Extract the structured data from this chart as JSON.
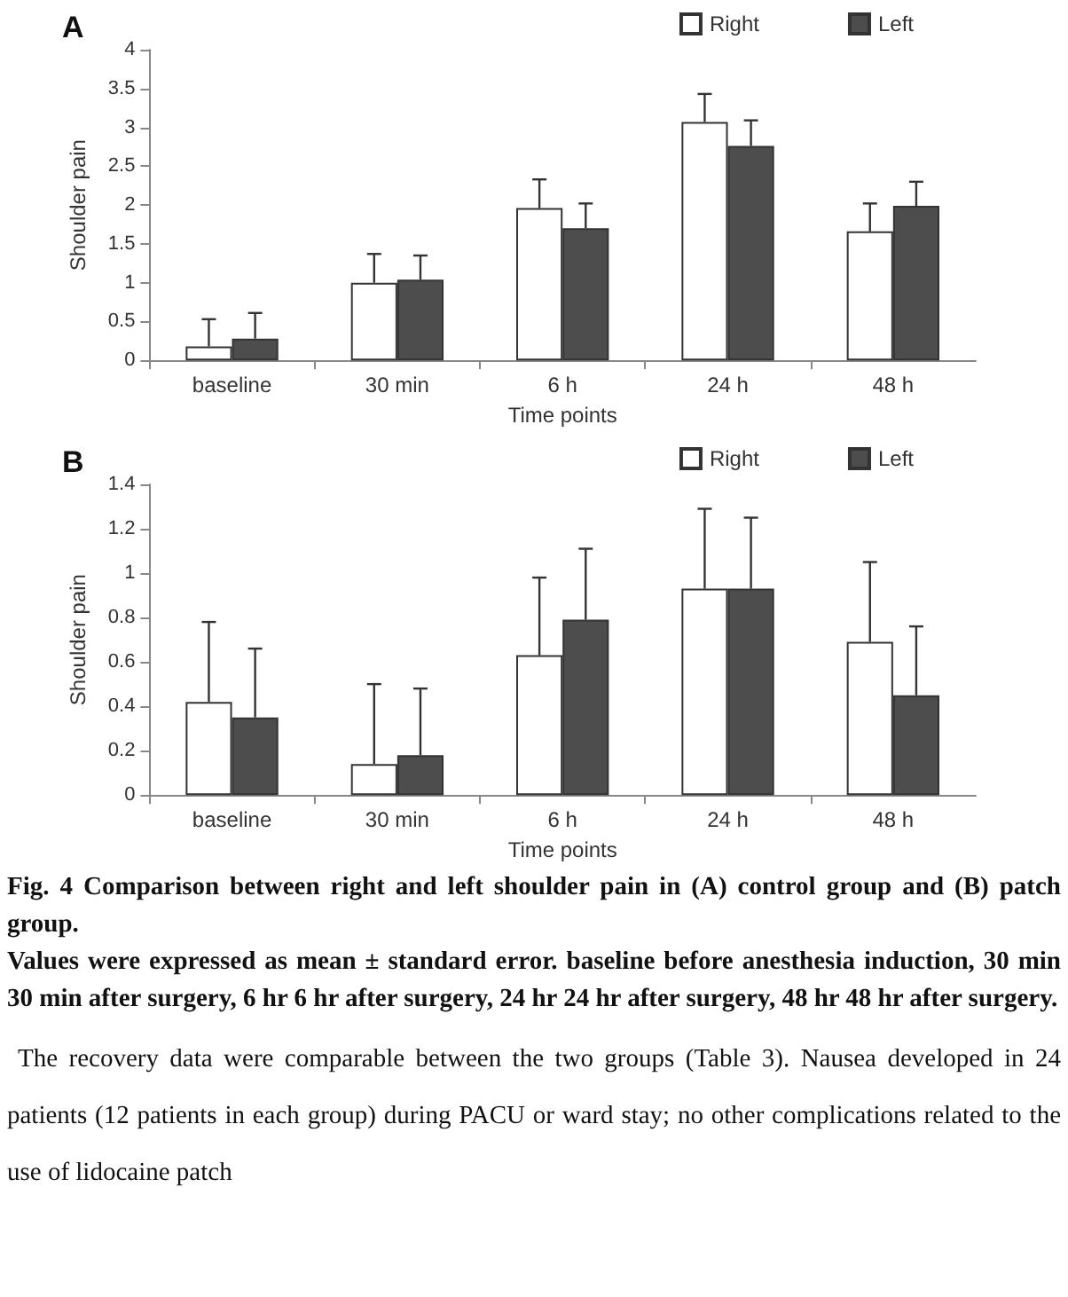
{
  "chart_data": [
    {
      "type": "bar",
      "title": "A",
      "xlabel": "Time points",
      "ylabel": "Shoulder pain",
      "categories": [
        "baseline",
        "30 min",
        "6 h",
        "24 h",
        "48 h"
      ],
      "legend": "top right",
      "ylim": [
        0,
        4
      ],
      "yticks": [
        0,
        0.5,
        1,
        1.5,
        2,
        2.5,
        3,
        3.5,
        4
      ],
      "series": [
        {
          "name": "Right",
          "color": "#ffffff",
          "values": [
            0.18,
            1.0,
            1.96,
            3.07,
            1.66
          ],
          "errors": [
            [
              0.18,
              0.53
            ],
            [
              1.0,
              1.37
            ],
            [
              1.96,
              2.33
            ],
            [
              3.07,
              3.43
            ],
            [
              1.66,
              2.02
            ]
          ]
        },
        {
          "name": "Left",
          "color": "#4d4d4d",
          "values": [
            0.28,
            1.04,
            1.7,
            2.76,
            1.99
          ],
          "errors": [
            [
              0.28,
              0.61
            ],
            [
              1.04,
              1.35
            ],
            [
              1.7,
              2.02
            ],
            [
              2.76,
              3.09
            ],
            [
              1.99,
              2.3
            ]
          ]
        }
      ]
    },
    {
      "type": "bar",
      "title": "B",
      "xlabel": "Time points",
      "ylabel": "Shoulder pain",
      "categories": [
        "baseline",
        "30 min",
        "6 h",
        "24 h",
        "48 h"
      ],
      "legend": "top right",
      "ylim": [
        0,
        1.4
      ],
      "yticks": [
        0,
        0.2,
        0.4,
        0.6,
        0.8,
        1,
        1.2,
        1.4
      ],
      "series": [
        {
          "name": "Right",
          "color": "#ffffff",
          "values": [
            0.42,
            0.14,
            0.63,
            0.93,
            0.69
          ],
          "errors": [
            [
              0.42,
              0.78
            ],
            [
              0.14,
              0.5
            ],
            [
              0.63,
              0.98
            ],
            [
              0.93,
              1.29
            ],
            [
              0.69,
              1.05
            ]
          ]
        },
        {
          "name": "Left",
          "color": "#4d4d4d",
          "values": [
            0.35,
            0.18,
            0.79,
            0.93,
            0.45
          ],
          "errors": [
            [
              0.35,
              0.66
            ],
            [
              0.18,
              0.48
            ],
            [
              0.79,
              1.11
            ],
            [
              0.93,
              1.25
            ],
            [
              0.45,
              0.76
            ]
          ]
        }
      ],
      "annotations": [
        "Fig. 4 Comparison between right and left shoulder pain in (A) control group and (B) patch group.",
        "Values were expressed as mean ± standard error. baseline before anesthesia induction, 30 min 30 min after surgery, 6 hr 6 hr after surgery, 24 hr 24 hr after surgery, 48 hr 48 hr after surgery.",
        "The recovery data were comparable between the two groups (Table 3). Nausea developed in 24 patients (12 patients in each group) during PACU or ward stay; no other complications related to the use of lidocaine patch"
      ]
    }
  ]
}
